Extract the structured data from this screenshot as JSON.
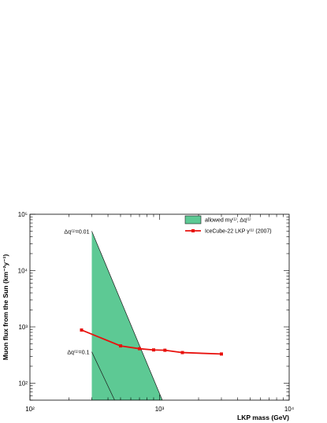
{
  "chart_data": {
    "type": "line",
    "xlabel": "LKP mass (GeV)",
    "ylabel": "Muon flux from the Sun (km⁻²y⁻¹)",
    "xscale": "log",
    "yscale": "log",
    "xlim": [
      100,
      10000
    ],
    "ylim": [
      50,
      100000
    ],
    "x_tick_labels": [
      "10²",
      "10³",
      "10⁴"
    ],
    "y_tick_labels": [
      "10²",
      "10³",
      "10⁴",
      "10⁵"
    ],
    "grid": false,
    "legend_position": "top-right",
    "series": [
      {
        "name": "IceCube-22 LKP γ⁽¹⁾ (2007)",
        "kind": "line-with-markers",
        "color": "#e8120e",
        "x": [
          250,
          500,
          700,
          900,
          1100,
          1500,
          3000
        ],
        "y": [
          880,
          460,
          410,
          390,
          385,
          350,
          330
        ]
      }
    ],
    "allowed_region": {
      "name": "allowed mγ⁽¹⁾, Δq⁽¹⁾",
      "color": "#5dc994",
      "polygon": [
        [
          300,
          50000
        ],
        [
          300,
          50
        ],
        [
          1050,
          50
        ]
      ],
      "edge_lines": [
        {
          "x": [
            300,
            1050
          ],
          "y": [
            50000,
            50
          ]
        },
        {
          "x": [
            300,
            450
          ],
          "y": [
            360,
            50
          ]
        }
      ]
    },
    "annotations": [
      {
        "text": "Δq⁽¹⁾=0.01",
        "near": "left of upper edge of allowed region"
      },
      {
        "text": "Δq⁽¹⁾=0.1",
        "near": "left of lower edge line of allowed region"
      }
    ]
  }
}
